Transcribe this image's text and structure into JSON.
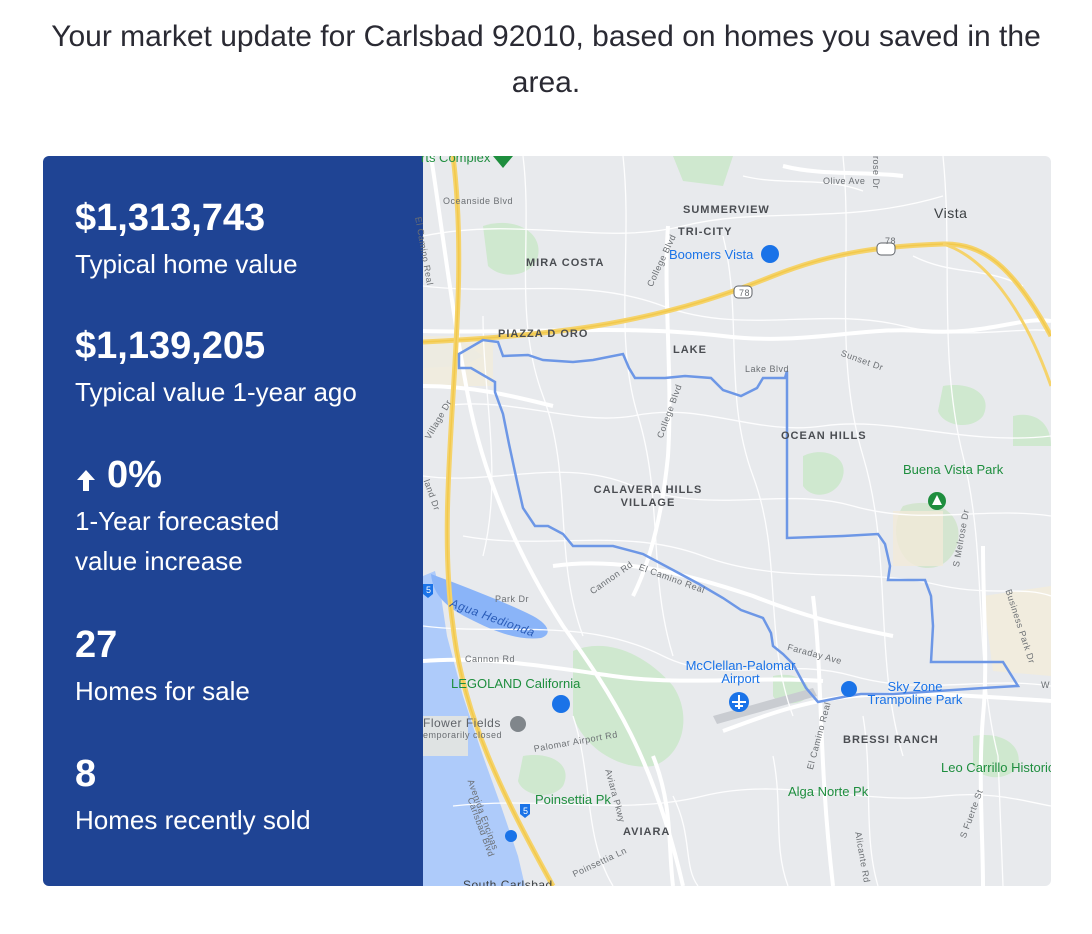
{
  "headline": "Your market update for Carlsbad 92010, based on homes you saved in the area.",
  "stats": [
    {
      "value": "$1,313,743",
      "label": "Typical home value"
    },
    {
      "value": "$1,139,205",
      "label": "Typical value 1-year ago"
    },
    {
      "value": "0%",
      "label": "1-Year forecasted value increase",
      "icon": "arrow-up-icon"
    },
    {
      "value": "27",
      "label": "Homes for sale"
    },
    {
      "value": "8",
      "label": "Homes recently sold"
    }
  ],
  "map": {
    "labels": {
      "summerview": "SUMMERVIEW",
      "tri_city": "TRI-CITY",
      "vista": "Vista",
      "mira_costa": "MIRA COSTA",
      "boomers": "Boomers Vista",
      "piazza": "PIAZZA D ORO",
      "lake": "LAKE",
      "ocean_hills": "OCEAN HILLS",
      "buena_vista": "Buena Vista Park",
      "calavera": "CALAVERA HILLS VILLAGE",
      "agua_hedionda": "Agua Hedionda",
      "legoland": "LEGOLAND California",
      "flower_fields": "Flower Fields",
      "temporarily_closed": "emporarily closed",
      "mcclellan": "McClellan-Palomar Airport",
      "sky_zone": "Sky Zone Trampoline Park",
      "bressi": "BRESSI RANCH",
      "leo_carrillo": "Leo Carrillo Historic Pk",
      "alga_norte": "Alga Norte Pk",
      "poinsettia": "Poinsettia Pk",
      "aviara": "AVIARA",
      "south_carlsbad": "South Carlsbad",
      "sports_complex": "rts Complex",
      "olive_ave": "Olive Ave",
      "oceanside_blvd": "Oceanside Blvd",
      "el_camino_real_n": "El Camino Real",
      "college_blvd_n": "College Blvd",
      "college_blvd_s": "College Blvd",
      "lake_blvd": "Lake Blvd",
      "sunset_dr": "Sunset Dr",
      "village_dr": "Village Dr",
      "island_dr": "land Dr",
      "park_dr": "Park Dr",
      "cannon_rd_w": "Cannon Rd",
      "cannon_rd_e": "Cannon Rd",
      "el_camino_real_c": "El Camino Real",
      "faraday_ave": "Faraday Ave",
      "palomar_airport_rd": "Palomar Airport Rd",
      "aviara_pkwy": "Aviara Pkwy",
      "avenida_encinas": "Avenida Encinas",
      "carlsbad_blvd": "Carlsbad Blvd",
      "el_camino_real_s": "El Camino Real",
      "melrose_dr": "S Melrose Dr",
      "business_park_dr": "Business Park Dr",
      "alicante_rd": "Alicante Rd",
      "fuerte_st": "S Fuerte St",
      "poinsettia_ln": "Poinsettia Ln",
      "rose_dr": "rose Dr",
      "hwy78_a": "78",
      "hwy78_b": "78",
      "i5_a": "5",
      "i5_b": "5",
      "w_edge": "W"
    }
  }
}
